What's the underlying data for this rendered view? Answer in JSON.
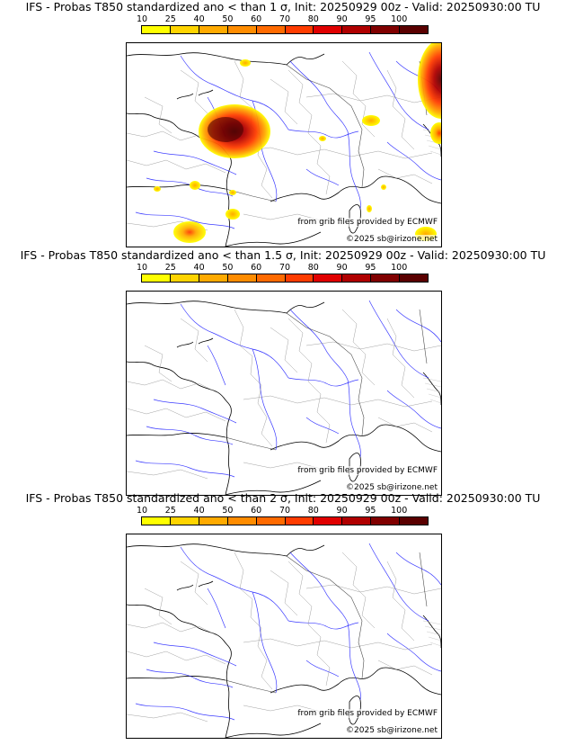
{
  "colorbar": {
    "ticks": [
      "10",
      "25",
      "40",
      "50",
      "60",
      "70",
      "80",
      "90",
      "95",
      "100"
    ],
    "colors": [
      "#ffff00",
      "#ffd400",
      "#ffaa00",
      "#ff8c00",
      "#ff6a00",
      "#ff3c00",
      "#e00000",
      "#b00000",
      "#800000",
      "#5a0000"
    ]
  },
  "credits": {
    "source": "from grib files provided by ECMWF",
    "copyright": "©2025 sb@irizone.net"
  },
  "panels": [
    {
      "title": "IFS - Probas T850  standardized ano < than 1 σ, Init: 20250929 00z - Valid: 20250930:00 TU",
      "has_anomaly": true
    },
    {
      "title": "IFS - Probas T850  standardized ano < than 1.5 σ, Init: 20250929 00z - Valid: 20250930:00 TU",
      "has_anomaly": false
    },
    {
      "title": "IFS - Probas T850  standardized ano < than 2 σ, Init: 20250929 00z - Valid: 20250930:00 TU",
      "has_anomaly": false
    }
  ]
}
